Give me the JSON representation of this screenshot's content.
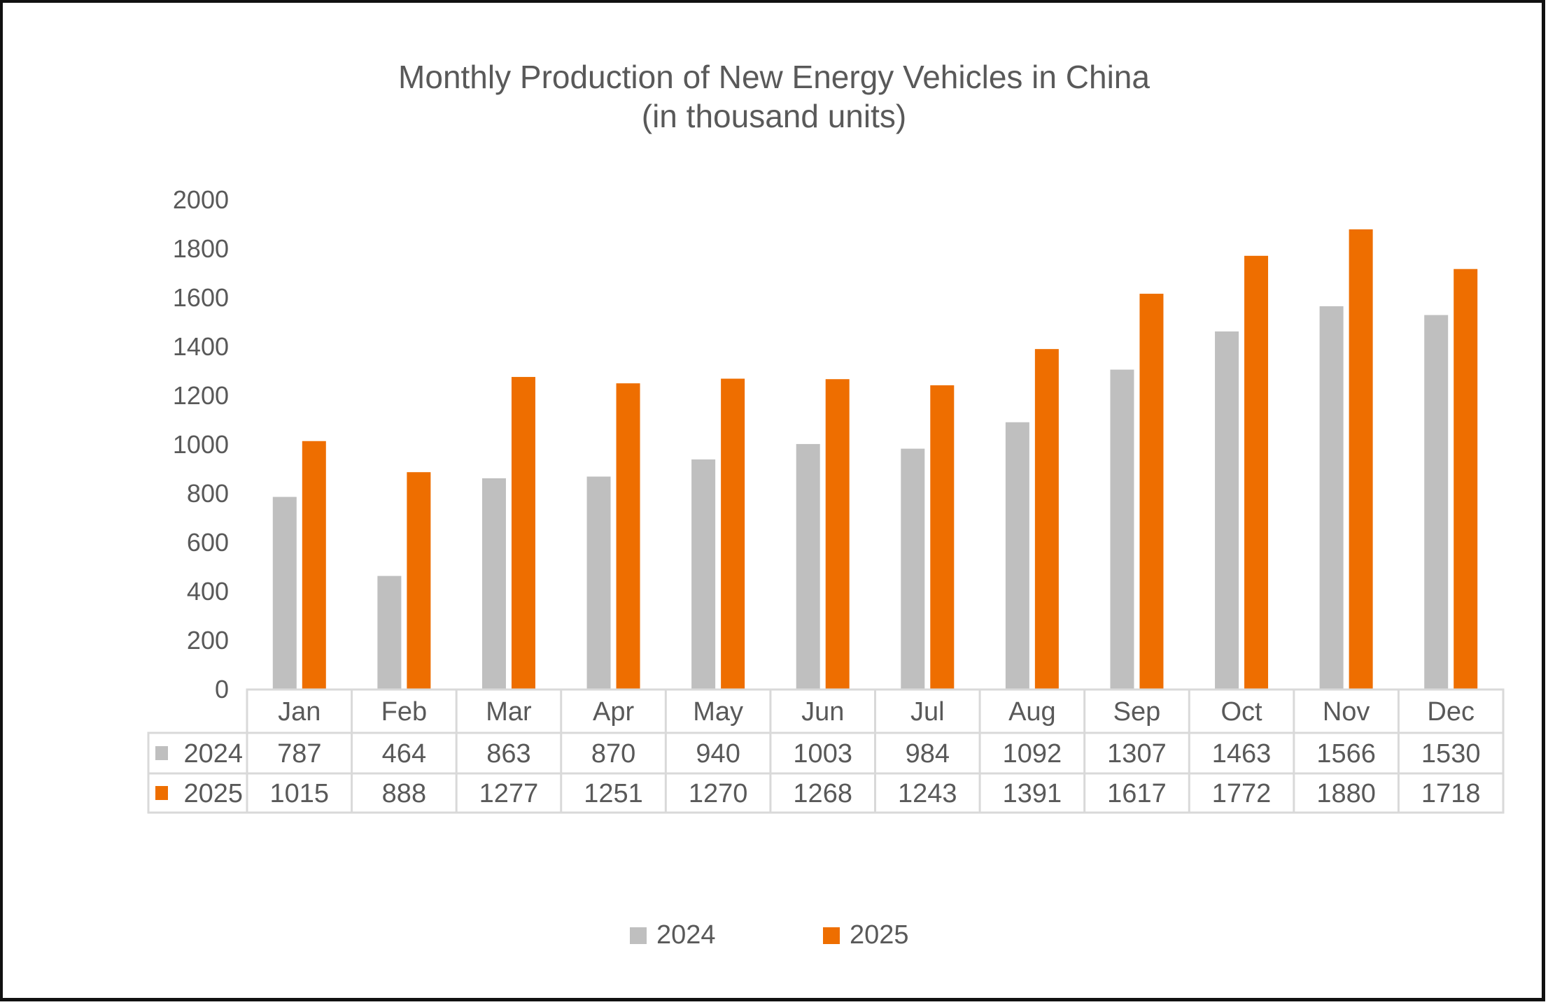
{
  "chart_data": {
    "type": "bar",
    "title": "Monthly Production of New Energy Vehicles in China",
    "subtitle": "(in thousand units)",
    "xlabel": "",
    "ylabel": "",
    "ylim": [
      0,
      2000
    ],
    "yticks": [
      0,
      200,
      400,
      600,
      800,
      1000,
      1200,
      1400,
      1600,
      1800,
      2000
    ],
    "grid": false,
    "categories": [
      "Jan",
      "Feb",
      "Mar",
      "Apr",
      "May",
      "Jun",
      "Jul",
      "Aug",
      "Sep",
      "Oct",
      "Nov",
      "Dec"
    ],
    "series": [
      {
        "name": "2024",
        "color": "#BFBFBF",
        "values": [
          787,
          464,
          863,
          870,
          940,
          1003,
          984,
          1092,
          1307,
          1463,
          1566,
          1530
        ]
      },
      {
        "name": "2025",
        "color": "#EE6E00",
        "values": [
          1015,
          888,
          1277,
          1251,
          1270,
          1268,
          1243,
          1391,
          1617,
          1772,
          1880,
          1718
        ]
      }
    ],
    "data_table": true,
    "legend_position": "bottom"
  }
}
